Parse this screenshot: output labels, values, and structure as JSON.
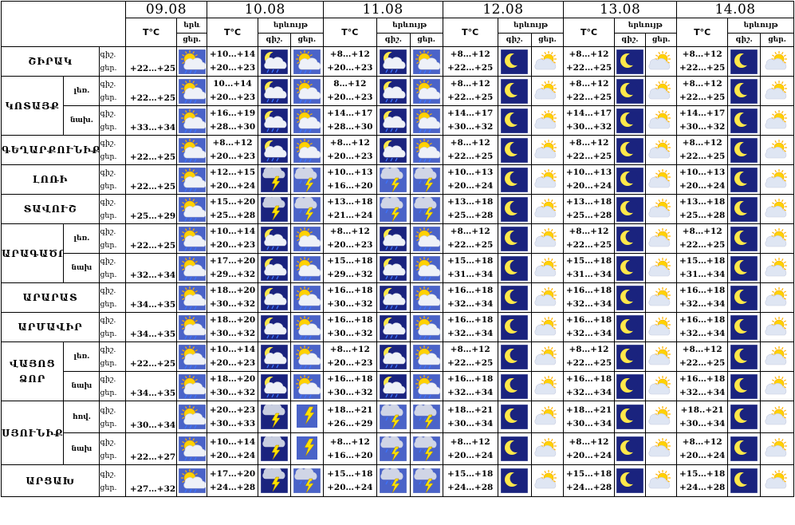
{
  "header": {
    "dates": [
      "09.08",
      "10.08",
      "11.08",
      "12.08",
      "13.08",
      "14.08"
    ],
    "temp_label": "T°C",
    "cloud_label_short": "երև",
    "cloud_label": "երևույթ",
    "night": "գիշ.",
    "day": "ցեր."
  },
  "regions": [
    {
      "name": "ՇԻՐԱԿ",
      "subs": [
        {
          "label": "",
          "first": "+22…+25",
          "days": [
            {
              "t1": "+10…+14",
              "t2": "+20…+23",
              "n": "moon-cloud-rain",
              "d": "sun-cloud-rain"
            },
            {
              "t1": "+8…+12",
              "t2": "+20…+23",
              "n": "moon-cloud-rain",
              "d": "sun-cloud-rain"
            },
            {
              "t1": "+8…+12",
              "t2": "+22…+25",
              "n": "moon-clear",
              "d": "sun-cloud"
            },
            {
              "t1": "+8…+12",
              "t2": "+22…+25",
              "n": "moon-clear",
              "d": "sun-cloud"
            },
            {
              "t1": "+8…+12",
              "t2": "+22…+25",
              "n": "moon-clear",
              "d": "sun-cloud"
            }
          ]
        }
      ]
    },
    {
      "name": "ԿՈՏԱՅՔ",
      "subs": [
        {
          "label": "լեռ.",
          "first": "+22…+25",
          "days": [
            {
              "t1": "10…+14",
              "t2": "+20…+23",
              "n": "moon-cloud-rain",
              "d": "sun-cloud-rain"
            },
            {
              "t1": "8…+12",
              "t2": "+20…+23",
              "n": "moon-cloud-rain",
              "d": "sun-cloud-rain"
            },
            {
              "t1": "+8…+12",
              "t2": "+22…+25",
              "n": "moon-clear",
              "d": "sun-cloud"
            },
            {
              "t1": "+8…+12",
              "t2": "+22…+25",
              "n": "moon-clear",
              "d": "sun-cloud"
            },
            {
              "t1": "+8…+12",
              "t2": "+22…+25",
              "n": "moon-clear",
              "d": "sun-cloud"
            }
          ]
        },
        {
          "label": "նախ.",
          "first": "+33…+34",
          "days": [
            {
              "t1": "+16…+19",
              "t2": "+28…+30",
              "n": "moon-cloud-rain",
              "d": "sun-cloud-rain"
            },
            {
              "t1": "+14…+17",
              "t2": "+28…+30",
              "n": "moon-cloud-rain",
              "d": "sun-cloud-rain"
            },
            {
              "t1": "+14…+17",
              "t2": "+30…+32",
              "n": "moon-clear",
              "d": "sun-cloud"
            },
            {
              "t1": "+14…+17",
              "t2": "+30…+32",
              "n": "moon-clear",
              "d": "sun-cloud"
            },
            {
              "t1": "+14…+17",
              "t2": "+30…+32",
              "n": "moon-clear",
              "d": "sun-cloud"
            }
          ]
        }
      ]
    },
    {
      "name": "ԳԵՂԱՐՔՈՒՆԻՔ",
      "subs": [
        {
          "label": "",
          "first": "+22…+25",
          "days": [
            {
              "t1": "+8…+12",
              "t2": "+20…+23",
              "n": "moon-cloud-rain",
              "d": "sun-cloud-rain"
            },
            {
              "t1": "+8…+12",
              "t2": "+20…+23",
              "n": "moon-cloud-rain",
              "d": "sun-cloud-rain"
            },
            {
              "t1": "+8…+12",
              "t2": "+22…+25",
              "n": "moon-clear",
              "d": "sun-cloud"
            },
            {
              "t1": "+8…+12",
              "t2": "+22…+25",
              "n": "moon-clear",
              "d": "sun-cloud"
            },
            {
              "t1": "+8…+12",
              "t2": "+22…+25",
              "n": "moon-clear",
              "d": "sun-cloud"
            }
          ]
        }
      ]
    },
    {
      "name": "ԼՈՌԻ",
      "subs": [
        {
          "label": "",
          "first": "+22…+25",
          "days": [
            {
              "t1": "+12…+15",
              "t2": "+20…+24",
              "n": "storm",
              "d": "storm-rain"
            },
            {
              "t1": "+10…+13",
              "t2": "+16…+20",
              "n": "storm-rain",
              "d": "storm-rain"
            },
            {
              "t1": "+10…+13",
              "t2": "+20…+24",
              "n": "moon-clear",
              "d": "sun-cloud"
            },
            {
              "t1": "+10…+13",
              "t2": "+20…+24",
              "n": "moon-clear",
              "d": "sun-cloud"
            },
            {
              "t1": "+10…+13",
              "t2": "+20…+24",
              "n": "moon-clear",
              "d": "sun-cloud"
            }
          ]
        }
      ]
    },
    {
      "name": "ՏԱՎՈՒՇ",
      "subs": [
        {
          "label": "",
          "first": "+25…+29",
          "days": [
            {
              "t1": "+15…+20",
              "t2": "+25…+28",
              "n": "storm",
              "d": "storm-rain"
            },
            {
              "t1": "+13…+18",
              "t2": "+21…+24",
              "n": "storm-rain",
              "d": "storm-rain"
            },
            {
              "t1": "+13…+18",
              "t2": "+25…+28",
              "n": "moon-clear",
              "d": "sun-cloud"
            },
            {
              "t1": "+13…+18",
              "t2": "+25…+28",
              "n": "moon-clear",
              "d": "sun-cloud"
            },
            {
              "t1": "+13…+18",
              "t2": "+25…+28",
              "n": "moon-clear",
              "d": "sun-cloud"
            }
          ]
        }
      ]
    },
    {
      "name": "ԱՐԱԳԱԾՈՏՆ",
      "subs": [
        {
          "label": "լեռ.",
          "first": "+22…+25",
          "days": [
            {
              "t1": "+10…+14",
              "t2": "+20…+23",
              "n": "moon-cloud-rain",
              "d": "sun-cloud-rain"
            },
            {
              "t1": "+8…+12",
              "t2": "+20…+23",
              "n": "moon-cloud-rain",
              "d": "sun-cloud-rain"
            },
            {
              "t1": "+8…+12",
              "t2": "+22…+25",
              "n": "moon-clear",
              "d": "sun-cloud"
            },
            {
              "t1": "+8…+12",
              "t2": "+22…+25",
              "n": "moon-clear",
              "d": "sun-cloud"
            },
            {
              "t1": "+8…+12",
              "t2": "+22…+25",
              "n": "moon-clear",
              "d": "sun-cloud"
            }
          ]
        },
        {
          "label": "նախ",
          "first": "+32…+34",
          "days": [
            {
              "t1": "+17…+20",
              "t2": "+29…+32",
              "n": "moon-cloud-rain",
              "d": "sun-cloud-rain"
            },
            {
              "t1": "+15…+18",
              "t2": "+29…+32",
              "n": "moon-cloud-rain",
              "d": "sun-cloud-rain"
            },
            {
              "t1": "+15…+18",
              "t2": "+31…+34",
              "n": "moon-clear",
              "d": "sun-cloud"
            },
            {
              "t1": "+15…+18",
              "t2": "+31…+34",
              "n": "moon-clear",
              "d": "sun-cloud"
            },
            {
              "t1": "+15…+18",
              "t2": "+31…+34",
              "n": "moon-clear",
              "d": "sun-cloud"
            }
          ]
        }
      ]
    },
    {
      "name": "ԱՐԱՐԱՏ",
      "subs": [
        {
          "label": "",
          "first": "+34…+35",
          "days": [
            {
              "t1": "+18…+20",
              "t2": "+30…+32",
              "n": "moon-cloud-rain",
              "d": "sun-cloud-rain"
            },
            {
              "t1": "+16…+18",
              "t2": "+30…+32",
              "n": "moon-cloud-rain",
              "d": "sun-cloud-rain"
            },
            {
              "t1": "+16…+18",
              "t2": "+32…+34",
              "n": "moon-clear",
              "d": "sun-cloud"
            },
            {
              "t1": "+16…+18",
              "t2": "+32…+34",
              "n": "moon-clear",
              "d": "sun-cloud"
            },
            {
              "t1": "+16…+18",
              "t2": "+32…+34",
              "n": "moon-clear",
              "d": "sun-cloud"
            }
          ]
        }
      ]
    },
    {
      "name": "ԱՐՄԱՎԻՐ",
      "subs": [
        {
          "label": "",
          "first": "+34…+35",
          "days": [
            {
              "t1": "+18…+20",
              "t2": "+30…+32",
              "n": "moon-cloud-rain",
              "d": "sun-cloud-rain"
            },
            {
              "t1": "+16…+18",
              "t2": "+30…+32",
              "n": "moon-cloud-rain",
              "d": "sun-cloud-rain"
            },
            {
              "t1": "+16…+18",
              "t2": "+32…+34",
              "n": "moon-clear",
              "d": "sun-cloud"
            },
            {
              "t1": "+16…+18",
              "t2": "+32…+34",
              "n": "moon-clear",
              "d": "sun-cloud"
            },
            {
              "t1": "+16…+18",
              "t2": "+32…+34",
              "n": "moon-clear",
              "d": "sun-cloud"
            }
          ]
        }
      ]
    },
    {
      "name": "ՎԱՅՈՑ ՁՈՐ",
      "subs": [
        {
          "label": "լեռ.",
          "first": "+22…+25",
          "days": [
            {
              "t1": "+10…+14",
              "t2": "+20…+23",
              "n": "moon-cloud-rain",
              "d": "sun-cloud-rain"
            },
            {
              "t1": "+8…+12",
              "t2": "+20…+23",
              "n": "moon-cloud-rain",
              "d": "sun-cloud-rain"
            },
            {
              "t1": "+8…+12",
              "t2": "+22…+25",
              "n": "moon-clear",
              "d": "sun-cloud"
            },
            {
              "t1": "+8…+12",
              "t2": "+22…+25",
              "n": "moon-clear",
              "d": "sun-cloud"
            },
            {
              "t1": "+8…+12",
              "t2": "+22…+25",
              "n": "moon-clear",
              "d": "sun-cloud"
            }
          ]
        },
        {
          "label": "նախ",
          "first": "+34…+35",
          "days": [
            {
              "t1": "+18…+20",
              "t2": "+30…+32",
              "n": "moon-cloud-rain",
              "d": "sun-cloud-rain"
            },
            {
              "t1": "+16…+18",
              "t2": "+30…+32",
              "n": "moon-cloud-rain",
              "d": "sun-cloud-rain"
            },
            {
              "t1": "+16…+18",
              "t2": "+32…+34",
              "n": "moon-clear",
              "d": "sun-cloud"
            },
            {
              "t1": "+16…+18",
              "t2": "+32…+34",
              "n": "moon-clear",
              "d": "sun-cloud"
            },
            {
              "t1": "+16…+18",
              "t2": "+32…+34",
              "n": "moon-clear",
              "d": "sun-cloud"
            }
          ]
        }
      ]
    },
    {
      "name": "ՍՅՈՒՆԻՔ",
      "subs": [
        {
          "label": "հով.",
          "first": "+30…+34",
          "days": [
            {
              "t1": "+20…+23",
              "t2": "+30…+33",
              "n": "storm",
              "d": "bolt"
            },
            {
              "t1": "+18…+21",
              "t2": "+26…+29",
              "n": "storm-rain",
              "d": "storm-rain"
            },
            {
              "t1": "+18…+21",
              "t2": "+30…+34",
              "n": "moon-clear",
              "d": "sun-cloud"
            },
            {
              "t1": "+18…+21",
              "t2": "+30…+34",
              "n": "moon-clear",
              "d": "sun-cloud"
            },
            {
              "t1": "+18..+21",
              "t2": "+30…+34",
              "n": "moon-clear",
              "d": "sun-cloud"
            }
          ]
        },
        {
          "label": "նախ",
          "first": "+22…+27",
          "days": [
            {
              "t1": "+10…+14",
              "t2": "+20…+24",
              "n": "storm",
              "d": "bolt"
            },
            {
              "t1": "+8…+12",
              "t2": "+16…+20",
              "n": "storm-rain",
              "d": "storm-rain"
            },
            {
              "t1": "+8…+12",
              "t2": "+20…+24",
              "n": "moon-clear",
              "d": "sun-cloud"
            },
            {
              "t1": "+8…+12",
              "t2": "+20…+24",
              "n": "moon-clear",
              "d": "sun-cloud"
            },
            {
              "t1": "+8…+12",
              "t2": "+20…+24",
              "n": "moon-clear",
              "d": "sun-cloud"
            }
          ]
        }
      ]
    },
    {
      "name": "ԱՐՑԱԽ",
      "subs": [
        {
          "label": "",
          "first": "+27…+32",
          "days": [
            {
              "t1": "+17…+20",
              "t2": "+24…+28",
              "n": "storm",
              "d": "storm-rain"
            },
            {
              "t1": "+15…+18",
              "t2": "+20…+24",
              "n": "storm-rain",
              "d": "storm-rain"
            },
            {
              "t1": "+15…+18",
              "t2": "+24…+28",
              "n": "moon-clear",
              "d": "sun-cloud"
            },
            {
              "t1": "+15…+18",
              "t2": "+24…+28",
              "n": "moon-clear",
              "d": "sun-cloud"
            },
            {
              "t1": "+15…+18",
              "t2": "+24…+28",
              "n": "moon-clear",
              "d": "sun-cloud"
            }
          ]
        }
      ]
    }
  ],
  "colors": {
    "night_sky": "#1a237e",
    "day_sky": "#4a63c8",
    "sun": "#ffd200",
    "moon": "#ffe84a",
    "cloud": "#eef1f8",
    "rain": "#3b74ff",
    "bolt": "#ffe100"
  }
}
